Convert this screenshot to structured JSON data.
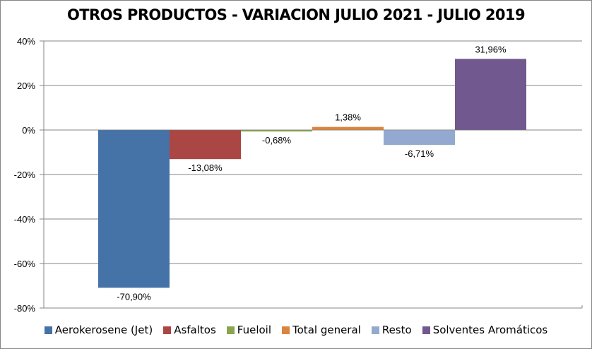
{
  "chart_data": {
    "type": "bar",
    "title": "OTROS PRODUCTOS - VARIACION JULIO 2021 - JULIO 2019",
    "xlabel": "",
    "ylabel": "",
    "ylim": [
      -80,
      40
    ],
    "yticks": [
      40,
      20,
      0,
      -20,
      -40,
      -60,
      -80
    ],
    "ytick_labels": [
      "40%",
      "20%",
      "0%",
      "-20%",
      "-40%",
      "-60%",
      "-80%"
    ],
    "grid": true,
    "legend_position": "bottom",
    "categories": [
      "Aerokerosene (Jet)",
      "Asfaltos",
      "Fueloil",
      "Total general",
      "Resto",
      "Solventes Aromáticos"
    ],
    "series": [
      {
        "name": "Aerokerosene (Jet)",
        "value": -70.9,
        "label": "-70,90%",
        "color": "#4572A7"
      },
      {
        "name": "Asfaltos",
        "value": -13.08,
        "label": "-13,08%",
        "color": "#AA4643"
      },
      {
        "name": "Fueloil",
        "value": -0.68,
        "label": "-0,68%",
        "color": "#89A54E"
      },
      {
        "name": "Total general",
        "value": 1.38,
        "label": "1,38%",
        "color": "#DB843D"
      },
      {
        "name": "Resto",
        "value": -6.71,
        "label": "-6,71%",
        "color": "#93A9CF"
      },
      {
        "name": "Solventes Aromáticos",
        "value": 31.96,
        "label": "31,96%",
        "color": "#71588F"
      }
    ]
  }
}
